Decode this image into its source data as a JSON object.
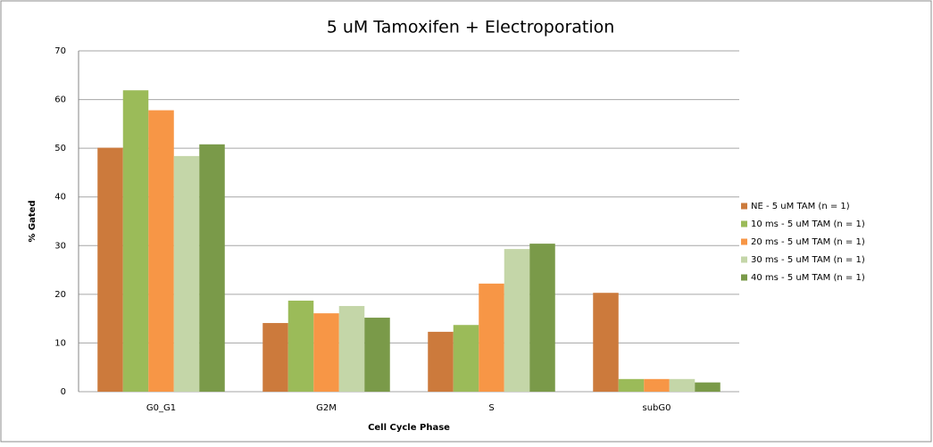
{
  "chart_data": {
    "type": "bar",
    "title": "5 uM Tamoxifen + Electroporation",
    "x_label": "Cell Cycle Phase",
    "y_label": "% Gated",
    "categories": [
      "G0_G1",
      "G2M",
      "S",
      "subG0"
    ],
    "series": [
      {
        "name": "NE - 5 uM TAM (n = 1)",
        "color": "#cc7a3c",
        "values": [
          50.1,
          14.1,
          12.3,
          20.3
        ]
      },
      {
        "name": "10 ms - 5 uM TAM (n = 1)",
        "color": "#9bbb59",
        "values": [
          61.9,
          18.7,
          13.7,
          2.6
        ]
      },
      {
        "name": "20 ms - 5 uM TAM (n = 1)",
        "color": "#f79646",
        "values": [
          57.8,
          16.1,
          22.2,
          2.6
        ]
      },
      {
        "name": "30 ms - 5 uM TAM (n = 1)",
        "color": "#c4d6a8",
        "values": [
          48.4,
          17.6,
          29.3,
          2.6
        ]
      },
      {
        "name": "40 ms - 5 uM TAM (n = 1)",
        "color": "#7a9a49",
        "values": [
          50.8,
          15.2,
          30.4,
          1.9
        ]
      }
    ],
    "ylim": [
      0,
      70
    ],
    "yticks": [
      0,
      10,
      20,
      30,
      40,
      50,
      60,
      70
    ],
    "grid": true,
    "legend": "right"
  }
}
